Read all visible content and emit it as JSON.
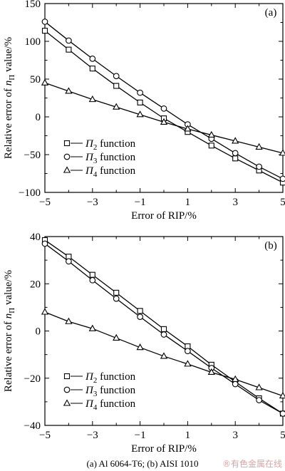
{
  "chart_data": [
    {
      "type": "line",
      "panel_label": "(a)",
      "xlabel": "Error of RIP/%",
      "ylabel": "Relative error of nΠ value/%",
      "xlim": [
        -5,
        5
      ],
      "ylim": [
        -100,
        150
      ],
      "x_ticks": [
        "−5",
        "−3",
        "−1",
        "1",
        "3",
        "5"
      ],
      "y_ticks": [
        "150",
        "100",
        "50",
        "0",
        "−50",
        "−100"
      ],
      "x_tick_values": [
        -5,
        -3,
        -1,
        1,
        3,
        5
      ],
      "y_tick_values": [
        150,
        100,
        50,
        0,
        -50,
        -100
      ],
      "legend_position": "bottom-center",
      "x": [
        -5,
        -4,
        -3,
        -2,
        -1,
        0,
        1,
        2,
        3,
        4,
        5
      ],
      "series": [
        {
          "name": "Π₂ function",
          "marker": "square",
          "values": [
            114,
            89,
            64,
            41,
            19,
            -2,
            -20,
            -38,
            -55,
            -71,
            -87
          ]
        },
        {
          "name": "Π₃ function",
          "marker": "circle",
          "values": [
            126,
            101,
            77,
            54,
            32,
            11,
            -10,
            -29,
            -48,
            -66,
            -82
          ]
        },
        {
          "name": "Π₄ function",
          "marker": "triangle",
          "values": [
            45,
            34,
            23,
            13,
            3,
            -7,
            -16,
            -24,
            -32,
            -40,
            -48
          ]
        }
      ]
    },
    {
      "type": "line",
      "panel_label": "(b)",
      "xlabel": "Error of RIP/%",
      "ylabel": "Relative error of nΠ value/%",
      "xlim": [
        -5,
        5
      ],
      "ylim": [
        -40,
        40
      ],
      "x_ticks": [
        "−5",
        "−3",
        "−1",
        "1",
        "3",
        "5"
      ],
      "y_ticks": [
        "40",
        "20",
        "0",
        "−20",
        "−40"
      ],
      "x_tick_values": [
        -5,
        -3,
        -1,
        1,
        3,
        5
      ],
      "y_tick_values": [
        40,
        20,
        0,
        -20,
        -40
      ],
      "legend_position": "bottom-center",
      "x": [
        -5,
        -4,
        -3,
        -2,
        -1,
        0,
        1,
        2,
        3,
        4,
        5
      ],
      "series": [
        {
          "name": "Π₂ function",
          "marker": "square",
          "values": [
            38.5,
            31.5,
            23.8,
            16.2,
            8.5,
            0.8,
            -6.5,
            -14.3,
            -21.5,
            -28.5,
            -35
          ]
        },
        {
          "name": "Π₃ function",
          "marker": "circle",
          "values": [
            37,
            29.5,
            21.5,
            13.7,
            6,
            -1.5,
            -8.5,
            -15.7,
            -22.5,
            -29.3,
            -35
          ]
        },
        {
          "name": "Π₄ function",
          "marker": "triangle",
          "values": [
            8,
            4,
            1,
            -3,
            -7,
            -10.7,
            -14,
            -17.5,
            -20.5,
            -24,
            -27.5
          ]
        }
      ]
    }
  ],
  "caption": "(a) Al 6064-T6; (b) AISI 1010",
  "watermark": "®有色金属在线"
}
